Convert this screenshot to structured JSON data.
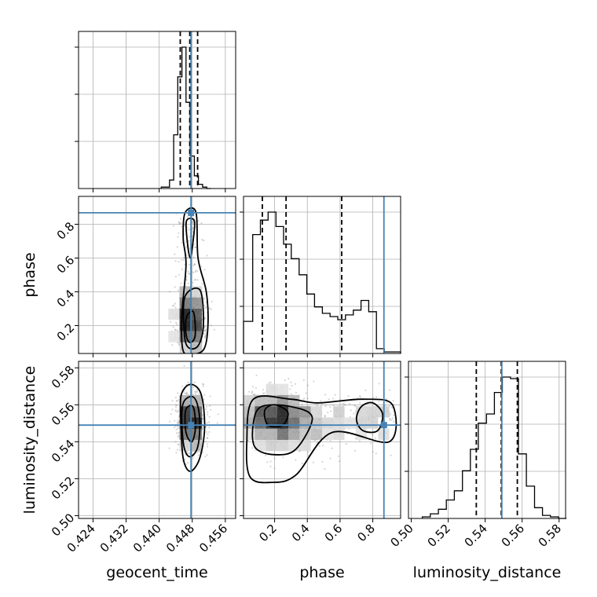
{
  "chart_data": {
    "type": "corner",
    "parameters": [
      "geocent_time",
      "phase",
      "luminosity_distance"
    ],
    "truth": {
      "geocent_time": 0.4477,
      "phase": 0.868,
      "luminosity_distance": 0.549
    },
    "truth_color": "#4682b4",
    "grid": true,
    "diag": [
      {
        "param": "geocent_time",
        "xlim": [
          0.4205,
          0.4585
        ],
        "xticks": [
          0.424,
          0.432,
          0.44,
          0.448,
          0.456
        ],
        "tick_labels": [
          "0.424",
          "0.432",
          "0.440",
          "0.448",
          "0.456"
        ],
        "quantiles": [
          0.4451,
          0.4474,
          0.4493
        ],
        "bin_edges": [
          0.4405,
          0.4425,
          0.4435,
          0.4445,
          0.4455,
          0.4465,
          0.4475,
          0.4485,
          0.4495,
          0.4505,
          0.4515,
          0.4525
        ],
        "counts": [
          0.01,
          0.06,
          0.38,
          0.79,
          1.0,
          0.61,
          0.23,
          0.09,
          0.03,
          0.01,
          0.0
        ]
      },
      {
        "param": "phase",
        "xlim": [
          0.01,
          0.97
        ],
        "xticks": [
          0.2,
          0.4,
          0.6,
          0.8
        ],
        "tick_labels": [
          "0.2",
          "0.4",
          "0.6",
          "0.8"
        ],
        "quantiles": [
          0.125,
          0.27,
          0.61
        ],
        "bin_edges": [
          0.01,
          0.066,
          0.113,
          0.16,
          0.208,
          0.255,
          0.302,
          0.35,
          0.397,
          0.444,
          0.492,
          0.539,
          0.586,
          0.633,
          0.681,
          0.728,
          0.775,
          0.822,
          0.87,
          0.917,
          0.97
        ],
        "counts": [
          0.2,
          0.74,
          0.83,
          0.88,
          0.79,
          0.68,
          0.59,
          0.49,
          0.37,
          0.29,
          0.25,
          0.23,
          0.21,
          0.24,
          0.27,
          0.33,
          0.26,
          0.03,
          0.01,
          0.01
        ]
      },
      {
        "param": "luminosity_distance",
        "xlim": [
          0.4985,
          0.5835
        ],
        "xticks": [
          0.5,
          0.52,
          0.54,
          0.56,
          0.58
        ],
        "tick_labels": [
          "0.50",
          "0.52",
          "0.54",
          "0.56",
          "0.58"
        ],
        "quantiles": [
          0.5352,
          0.5487,
          0.5574
        ],
        "bin_edges": [
          0.506,
          0.5103,
          0.5147,
          0.519,
          0.5233,
          0.5277,
          0.532,
          0.5363,
          0.5407,
          0.545,
          0.5493,
          0.5537,
          0.558,
          0.5623,
          0.5667,
          0.571,
          0.5753,
          0.5797,
          0.584
        ],
        "counts": [
          0.01,
          0.03,
          0.06,
          0.12,
          0.18,
          0.31,
          0.45,
          0.62,
          0.68,
          0.82,
          0.92,
          0.91,
          0.42,
          0.21,
          0.07,
          0.02,
          0.01,
          0.0
        ]
      }
    ],
    "pairs": [
      {
        "x": "geocent_time",
        "y": "phase",
        "yticks": [
          0.2,
          0.4,
          0.6,
          0.8
        ],
        "ytick_labels": [
          "0.2",
          "0.4",
          "0.6",
          "0.8"
        ],
        "ylim": [
          0.035,
          0.965
        ],
        "contours": [
          [
            [
              0.4463,
              0.87
            ],
            [
              0.4489,
              0.87
            ],
            [
              0.4494,
              0.6
            ],
            [
              0.4514,
              0.4
            ],
            [
              0.4518,
              0.2
            ],
            [
              0.4508,
              0.06
            ],
            [
              0.4476,
              0.03
            ],
            [
              0.4457,
              0.06
            ],
            [
              0.4455,
              0.27
            ],
            [
              0.4465,
              0.56
            ],
            [
              0.4458,
              0.72
            ]
          ],
          [
            [
              0.4466,
              0.82
            ],
            [
              0.4485,
              0.82
            ],
            [
              0.4482,
              0.7
            ],
            [
              0.4475,
              0.6
            ],
            [
              0.4468,
              0.7
            ]
          ],
          [
            [
              0.4462,
              0.37
            ],
            [
              0.4499,
              0.41
            ],
            [
              0.4507,
              0.2
            ],
            [
              0.4494,
              0.08
            ],
            [
              0.4471,
              0.07
            ],
            [
              0.4461,
              0.15
            ]
          ],
          [
            [
              0.4466,
              0.25
            ],
            [
              0.4483,
              0.28
            ],
            [
              0.4487,
              0.14
            ],
            [
              0.4474,
              0.1
            ],
            [
              0.4465,
              0.15
            ]
          ]
        ],
        "density": {
          "x_center": 0.4475,
          "x_sigma": 0.0017,
          "y_center": 0.19,
          "y_sigma": 0.09,
          "points": 900,
          "bins": 14
        }
      },
      {
        "x": "geocent_time",
        "y": "luminosity_distance",
        "yticks": [
          0.5,
          0.52,
          0.54,
          0.56,
          0.58
        ],
        "ytick_labels": [
          "0.50",
          "0.52",
          "0.54",
          "0.56",
          "0.58"
        ],
        "ylim": [
          0.4985,
          0.5835
        ],
        "contours": [
          [
            [
              0.4453,
              0.565
            ],
            [
              0.4475,
              0.571
            ],
            [
              0.4501,
              0.566
            ],
            [
              0.451,
              0.548
            ],
            [
              0.4498,
              0.531
            ],
            [
              0.4475,
              0.524
            ],
            [
              0.4458,
              0.531
            ],
            [
              0.4453,
              0.55
            ]
          ],
          [
            [
              0.4457,
              0.56
            ],
            [
              0.4484,
              0.564
            ],
            [
              0.4498,
              0.553
            ],
            [
              0.4493,
              0.537
            ],
            [
              0.4472,
              0.532
            ],
            [
              0.4458,
              0.54
            ]
          ],
          [
            [
              0.4464,
              0.557
            ],
            [
              0.4482,
              0.559
            ],
            [
              0.4488,
              0.548
            ],
            [
              0.4479,
              0.54
            ],
            [
              0.4465,
              0.545
            ]
          ]
        ],
        "density": {
          "x_center": 0.4476,
          "x_sigma": 0.0017,
          "y_center": 0.551,
          "y_sigma": 0.008,
          "points": 900,
          "bins": 14
        }
      },
      {
        "x": "phase",
        "y": "luminosity_distance",
        "ylim": [
          0.4985,
          0.5835
        ],
        "contours": [
          [
            [
              0.07,
              0.563
            ],
            [
              0.3,
              0.563
            ],
            [
              0.46,
              0.561
            ],
            [
              0.74,
              0.563
            ],
            [
              0.92,
              0.56
            ],
            [
              0.9,
              0.54
            ],
            [
              0.55,
              0.545
            ],
            [
              0.33,
              0.522
            ],
            [
              0.18,
              0.518
            ],
            [
              0.05,
              0.521
            ],
            [
              0.03,
              0.54
            ]
          ],
          [
            [
              0.07,
              0.55
            ],
            [
              0.12,
              0.559
            ],
            [
              0.3,
              0.559
            ],
            [
              0.43,
              0.553
            ],
            [
              0.33,
              0.536
            ],
            [
              0.2,
              0.533
            ],
            [
              0.08,
              0.537
            ]
          ],
          [
            [
              0.14,
              0.557
            ],
            [
              0.2,
              0.56
            ],
            [
              0.28,
              0.556
            ],
            [
              0.25,
              0.549
            ],
            [
              0.16,
              0.549
            ]
          ],
          [
            [
              0.7,
              0.552
            ],
            [
              0.73,
              0.559
            ],
            [
              0.8,
              0.561
            ],
            [
              0.86,
              0.555
            ],
            [
              0.83,
              0.546
            ],
            [
              0.74,
              0.546
            ]
          ]
        ],
        "density": {
          "x_center": 0.2,
          "x_sigma": 0.12,
          "y_center": 0.553,
          "y_sigma": 0.008,
          "points": 1000,
          "bins": 14
        }
      }
    ]
  }
}
